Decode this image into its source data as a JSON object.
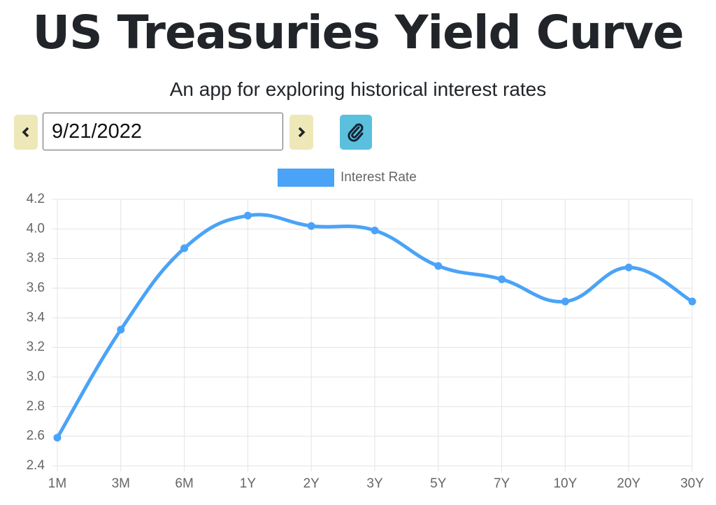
{
  "header": {
    "title": "US Treasuries Yield Curve",
    "subtitle": "An app for exploring historical interest rates"
  },
  "controls": {
    "date": "9/21/2022"
  },
  "chart_data": {
    "type": "line",
    "categories": [
      "1M",
      "3M",
      "6M",
      "1Y",
      "2Y",
      "3Y",
      "5Y",
      "7Y",
      "10Y",
      "20Y",
      "30Y"
    ],
    "series": [
      {
        "name": "Interest Rate",
        "color": "#4aa3f7",
        "values": [
          2.59,
          3.32,
          3.87,
          4.09,
          4.02,
          3.99,
          3.75,
          3.66,
          3.51,
          3.74,
          3.51
        ]
      }
    ],
    "ylim": [
      2.4,
      4.2
    ],
    "yticks": [
      2.4,
      2.6,
      2.8,
      {
        "value": 3,
        "label": "3.0"
      },
      3.2,
      3.4,
      3.6,
      3.8,
      {
        "value": 4,
        "label": "4.0"
      },
      4.2
    ],
    "grid": true,
    "legend": "top"
  }
}
